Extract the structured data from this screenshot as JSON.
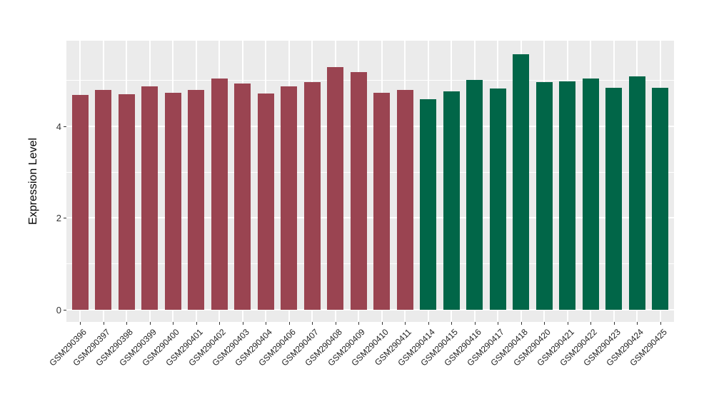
{
  "chart_data": {
    "type": "bar",
    "title": "",
    "xlabel": "",
    "ylabel": "Expression Level",
    "legend": "none",
    "grid": true,
    "panel_background": "#EBEBEB",
    "grid_color": "#FFFFFF",
    "axis_text_color": "#333333",
    "ylim": [
      -0.27,
      5.86
    ],
    "y_major_ticks": [
      0,
      2,
      4
    ],
    "y_minor_ticks": [
      1,
      3,
      5
    ],
    "group_colors": {
      "maroon": "#9A4451",
      "green": "#016648"
    },
    "bars": [
      {
        "label": "GSM290396",
        "value": 4.67,
        "group": "maroon"
      },
      {
        "label": "GSM290397",
        "value": 4.78,
        "group": "maroon"
      },
      {
        "label": "GSM290398",
        "value": 4.69,
        "group": "maroon"
      },
      {
        "label": "GSM290399",
        "value": 4.86,
        "group": "maroon"
      },
      {
        "label": "GSM290400",
        "value": 4.72,
        "group": "maroon"
      },
      {
        "label": "GSM290401",
        "value": 4.78,
        "group": "maroon"
      },
      {
        "label": "GSM290402",
        "value": 5.03,
        "group": "maroon"
      },
      {
        "label": "GSM290403",
        "value": 4.93,
        "group": "maroon"
      },
      {
        "label": "GSM290404",
        "value": 4.71,
        "group": "maroon"
      },
      {
        "label": "GSM290406",
        "value": 4.86,
        "group": "maroon"
      },
      {
        "label": "GSM290407",
        "value": 4.95,
        "group": "maroon"
      },
      {
        "label": "GSM290408",
        "value": 5.28,
        "group": "maroon"
      },
      {
        "label": "GSM290409",
        "value": 5.17,
        "group": "maroon"
      },
      {
        "label": "GSM290410",
        "value": 4.73,
        "group": "maroon"
      },
      {
        "label": "GSM290411",
        "value": 4.79,
        "group": "maroon"
      },
      {
        "label": "GSM290414",
        "value": 4.58,
        "group": "green"
      },
      {
        "label": "GSM290415",
        "value": 4.76,
        "group": "green"
      },
      {
        "label": "GSM290416",
        "value": 5.01,
        "group": "green"
      },
      {
        "label": "GSM290417",
        "value": 4.82,
        "group": "green"
      },
      {
        "label": "GSM290418",
        "value": 5.57,
        "group": "green"
      },
      {
        "label": "GSM290420",
        "value": 4.95,
        "group": "green"
      },
      {
        "label": "GSM290421",
        "value": 4.98,
        "group": "green"
      },
      {
        "label": "GSM290422",
        "value": 5.04,
        "group": "green"
      },
      {
        "label": "GSM290423",
        "value": 4.84,
        "group": "green"
      },
      {
        "label": "GSM290424",
        "value": 5.08,
        "group": "green"
      },
      {
        "label": "GSM290425",
        "value": 4.83,
        "group": "green"
      }
    ]
  }
}
